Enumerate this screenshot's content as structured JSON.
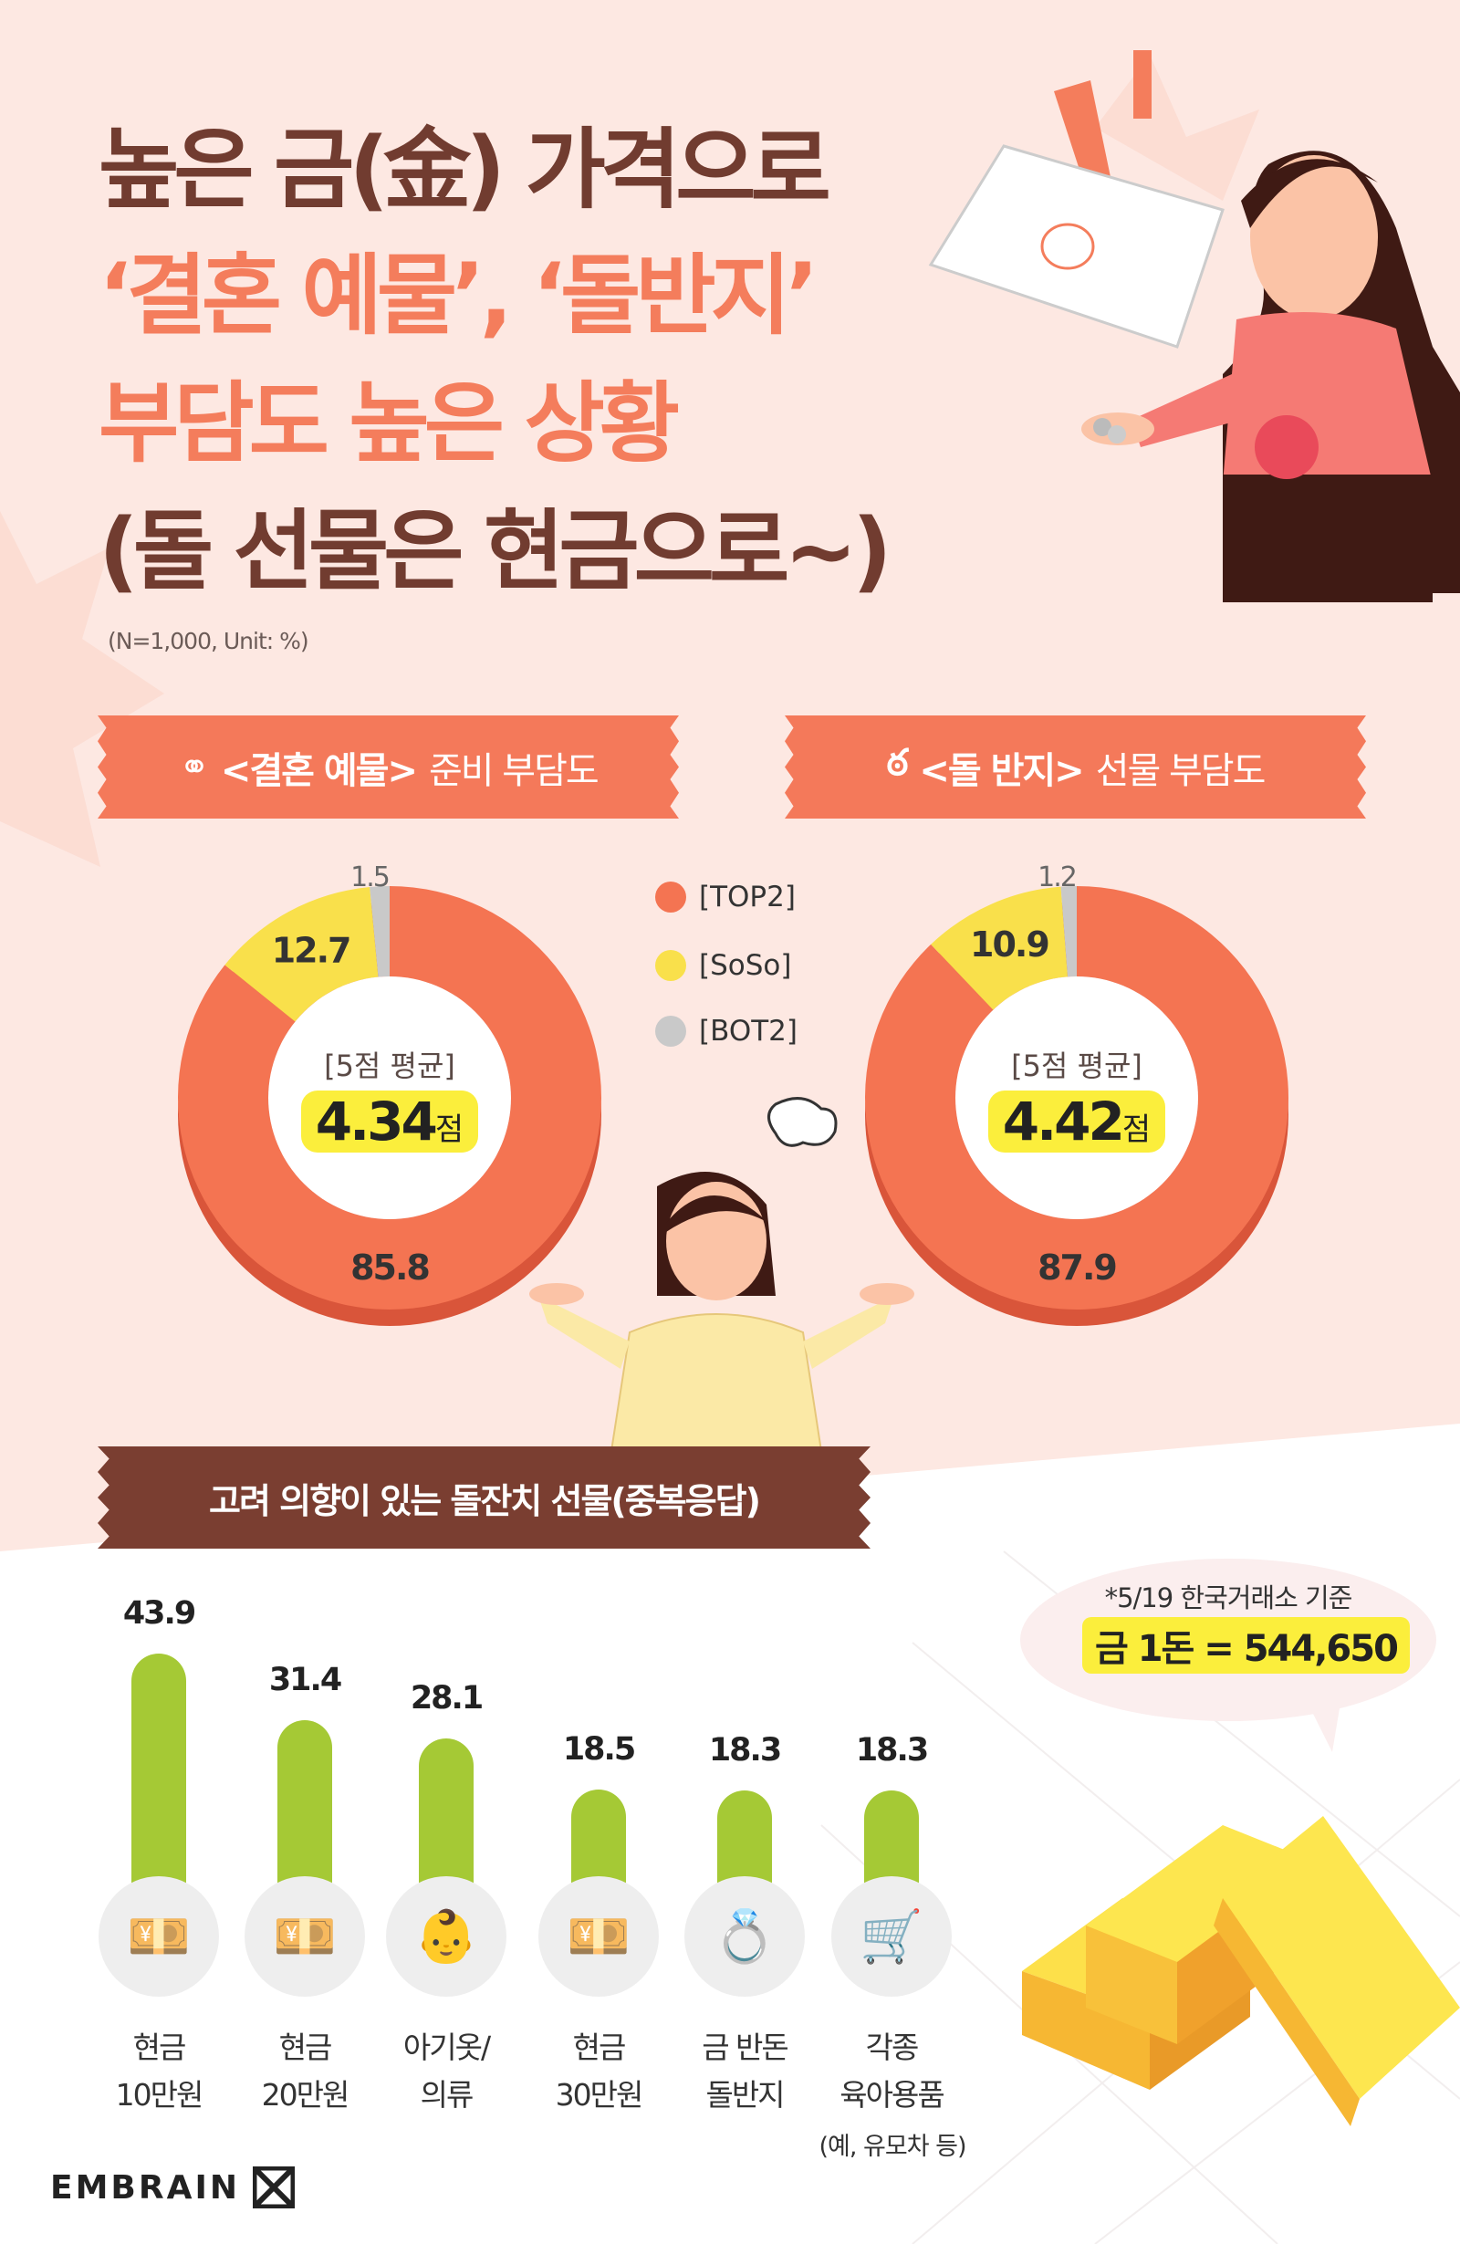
{
  "title": {
    "line1": "높은 금(金) 가격으로",
    "line2": "‘결혼 예물’, ‘돌반지’",
    "line3": "부담도 높은 상황",
    "line4": "(돌 선물은 현금으로~)"
  },
  "note": "(N=1,000, Unit: %)",
  "colors": {
    "top2": "#f47452",
    "soso": "#f9e04b",
    "bot2": "#c9c9c9",
    "bar": "#a5c935",
    "highlight": "#fbee3c"
  },
  "legend": [
    {
      "label": "[TOP2]",
      "color": "#f47452"
    },
    {
      "label": "[SoSo]",
      "color": "#f9e04b"
    },
    {
      "label": "[BOT2]",
      "color": "#c9c9c9"
    }
  ],
  "chart_data": [
    {
      "type": "pie",
      "title": "<결혼 예물> 준비 부담도",
      "title_bold": "<결혼 예물>",
      "title_rest": "준비 부담도",
      "icon": "rings-icon",
      "categories": [
        "TOP2",
        "SoSo",
        "BOT2"
      ],
      "values": [
        85.8,
        12.7,
        1.5
      ],
      "value_labels": [
        "85.8",
        "12.7",
        "1.5"
      ],
      "center_label": "[5점 평균]",
      "center_value": "4.34",
      "center_unit": "점"
    },
    {
      "type": "pie",
      "title": "<돌 반지> 선물 부담도",
      "title_bold": "<돌 반지>",
      "title_rest": "선물 부담도",
      "icon": "pacifier-icon",
      "categories": [
        "TOP2",
        "SoSo",
        "BOT2"
      ],
      "values": [
        87.9,
        10.9,
        1.2
      ],
      "value_labels": [
        "87.9",
        "10.9",
        "1.2"
      ],
      "center_label": "[5점 평균]",
      "center_value": "4.42",
      "center_unit": "점"
    },
    {
      "type": "bar",
      "title": "고려 의향이 있는 돌잔치 선물(중복응답)",
      "categories": [
        {
          "line1": "현금",
          "line2": "10만원",
          "icon": "cash-icon"
        },
        {
          "line1": "현금",
          "line2": "20만원",
          "icon": "cash-icon"
        },
        {
          "line1": "아기옷/",
          "line2": "의류",
          "icon": "baby-clothes-icon"
        },
        {
          "line1": "현금",
          "line2": "30만원",
          "icon": "cash-icon"
        },
        {
          "line1": "금 반돈",
          "line2": "돌반지",
          "icon": "gold-ring-icon"
        },
        {
          "line1": "각종",
          "line2": "육아용품",
          "icon": "stroller-icon"
        }
      ],
      "values": [
        43.9,
        31.4,
        28.1,
        18.5,
        18.3,
        18.3
      ],
      "value_labels": [
        "43.9",
        "31.4",
        "28.1",
        "18.5",
        "18.3",
        "18.3"
      ],
      "category_note": "(예, 유모차 등)"
    }
  ],
  "gold_price": {
    "note": "*5/19 한국거래소 기준",
    "price": "금 1돈 = 544,650"
  },
  "brand": "EMBRAIN"
}
